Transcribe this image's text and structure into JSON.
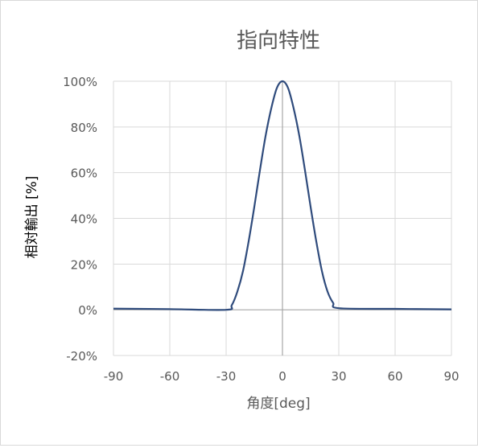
{
  "chart_data": {
    "type": "line",
    "title": "指向特性",
    "xlabel": "角度[deg]",
    "ylabel": "相対輸出 [%]",
    "xlim": [
      -90,
      90
    ],
    "ylim": [
      -20,
      100
    ],
    "x_ticks": [
      -90,
      -60,
      -30,
      0,
      30,
      60,
      90
    ],
    "y_ticks": [
      -20,
      0,
      20,
      40,
      60,
      80,
      100
    ],
    "y_tick_labels": [
      "-20%",
      "0%",
      "20%",
      "40%",
      "60%",
      "80%",
      "100%"
    ],
    "grid": true,
    "legend": "none",
    "series": [
      {
        "color": "#2f4b7c",
        "points": [
          [
            -90,
            0.5
          ],
          [
            -60,
            0.3
          ],
          [
            -30,
            0.0
          ],
          [
            -27,
            2
          ],
          [
            -24,
            8
          ],
          [
            -21,
            17
          ],
          [
            -18,
            30
          ],
          [
            -15,
            45
          ],
          [
            -12,
            61
          ],
          [
            -9,
            76
          ],
          [
            -6,
            88
          ],
          [
            -3,
            97
          ],
          [
            0,
            100
          ],
          [
            3,
            97
          ],
          [
            6,
            88
          ],
          [
            9,
            76
          ],
          [
            12,
            61
          ],
          [
            15,
            45
          ],
          [
            18,
            30
          ],
          [
            21,
            17
          ],
          [
            24,
            8
          ],
          [
            27,
            3
          ],
          [
            30,
            0.7
          ],
          [
            60,
            0.4
          ],
          [
            90,
            0.2
          ]
        ]
      }
    ]
  }
}
